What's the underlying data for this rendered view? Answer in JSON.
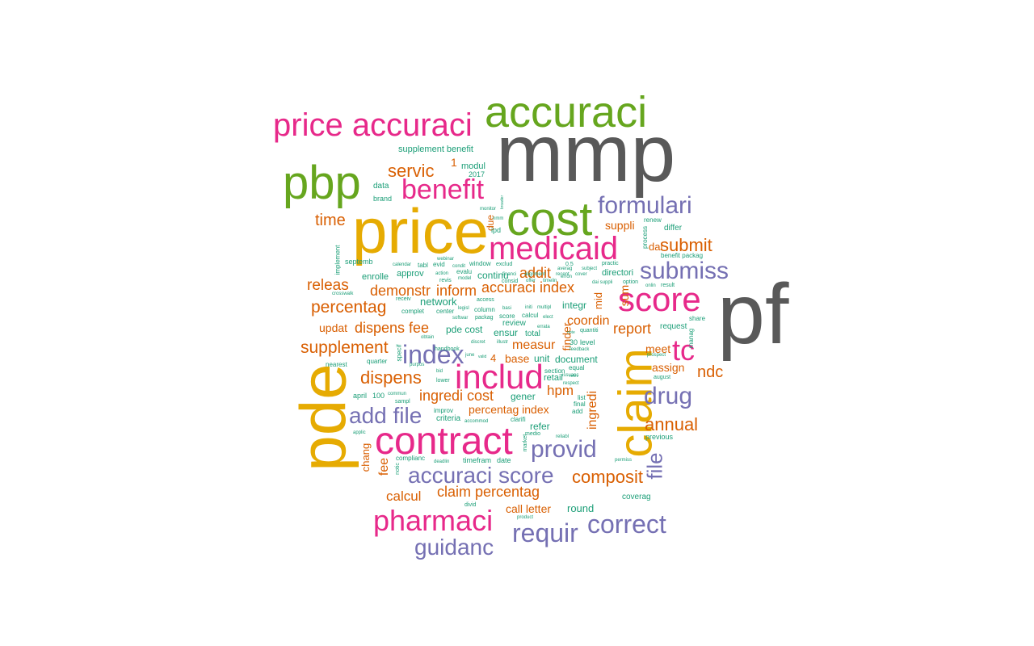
{
  "wordcloud": {
    "words": [
      {
        "text": "mmp",
        "color": "#595959"
      },
      {
        "text": "pf",
        "color": "#595959"
      },
      {
        "text": "price",
        "color": "#e6ab02"
      },
      {
        "text": "pde",
        "color": "#e6ab02"
      },
      {
        "text": "claim",
        "color": "#e6ab02"
      },
      {
        "text": "accuraci",
        "color": "#66a61e"
      },
      {
        "text": "cost",
        "color": "#66a61e"
      },
      {
        "text": "pbp",
        "color": "#66a61e"
      },
      {
        "text": "price accuraci",
        "color": "#e7298a"
      },
      {
        "text": "contract",
        "color": "#e7298a"
      },
      {
        "text": "medicaid",
        "color": "#e7298a"
      },
      {
        "text": "score",
        "color": "#e7298a"
      },
      {
        "text": "includ",
        "color": "#e7298a"
      },
      {
        "text": "pharmaci",
        "color": "#e7298a"
      },
      {
        "text": "benefit",
        "color": "#e7298a"
      },
      {
        "text": "tc",
        "color": "#e7298a"
      },
      {
        "text": "formulari",
        "color": "#7570b3"
      },
      {
        "text": "submiss",
        "color": "#7570b3"
      },
      {
        "text": "index",
        "color": "#7570b3"
      },
      {
        "text": "drug",
        "color": "#7570b3"
      },
      {
        "text": "add file",
        "color": "#7570b3"
      },
      {
        "text": "provid",
        "color": "#7570b3"
      },
      {
        "text": "accuraci score",
        "color": "#7570b3"
      },
      {
        "text": "requir",
        "color": "#7570b3"
      },
      {
        "text": "correct",
        "color": "#7570b3"
      },
      {
        "text": "guidanc",
        "color": "#7570b3"
      },
      {
        "text": "file",
        "color": "#7570b3"
      },
      {
        "text": "servic",
        "color": "#d95f02"
      },
      {
        "text": "time",
        "color": "#d95f02"
      },
      {
        "text": "submit",
        "color": "#d95f02"
      },
      {
        "text": "releas",
        "color": "#d95f02"
      },
      {
        "text": "percentag",
        "color": "#d95f02"
      },
      {
        "text": "demonstr",
        "color": "#d95f02"
      },
      {
        "text": "inform",
        "color": "#d95f02"
      },
      {
        "text": "accuraci index",
        "color": "#d95f02"
      },
      {
        "text": "addit",
        "color": "#d95f02"
      },
      {
        "text": "dispens fee",
        "color": "#d95f02"
      },
      {
        "text": "supplement",
        "color": "#d95f02"
      },
      {
        "text": "dispens",
        "color": "#d95f02"
      },
      {
        "text": "ingredi cost",
        "color": "#d95f02"
      },
      {
        "text": "report",
        "color": "#d95f02"
      },
      {
        "text": "coordin",
        "color": "#d95f02"
      },
      {
        "text": "measur",
        "color": "#d95f02"
      },
      {
        "text": "hpm",
        "color": "#d95f02"
      },
      {
        "text": "ndc",
        "color": "#d95f02"
      },
      {
        "text": "annual",
        "color": "#d95f02"
      },
      {
        "text": "composit",
        "color": "#d95f02"
      },
      {
        "text": "claim percentag",
        "color": "#d95f02"
      },
      {
        "text": "calcul",
        "color": "#d95f02"
      },
      {
        "text": "call letter",
        "color": "#d95f02"
      },
      {
        "text": "percentag index",
        "color": "#d95f02"
      },
      {
        "text": "assign",
        "color": "#d95f02"
      },
      {
        "text": "meet",
        "color": "#d95f02"
      },
      {
        "text": "base",
        "color": "#d95f02"
      },
      {
        "text": "suppli",
        "color": "#d95f02"
      },
      {
        "text": "dai",
        "color": "#d95f02"
      },
      {
        "text": "sum",
        "color": "#d95f02"
      },
      {
        "text": "mid",
        "color": "#d95f02"
      },
      {
        "text": "ingredi",
        "color": "#d95f02"
      },
      {
        "text": "fee",
        "color": "#d95f02"
      },
      {
        "text": "updat",
        "color": "#d95f02"
      },
      {
        "text": "1",
        "color": "#d95f02"
      },
      {
        "text": "4",
        "color": "#d95f02"
      },
      {
        "text": "chang",
        "color": "#d95f02"
      },
      {
        "text": "finder",
        "color": "#d95f02"
      },
      {
        "text": "due",
        "color": "#d95f02"
      },
      {
        "text": "supplement benefit",
        "color": "#1b9e77"
      },
      {
        "text": "modul",
        "color": "#1b9e77"
      },
      {
        "text": "2017",
        "color": "#1b9e77"
      },
      {
        "text": "data",
        "color": "#1b9e77"
      },
      {
        "text": "brand",
        "color": "#1b9e77"
      },
      {
        "text": "ipd",
        "color": "#1b9e77"
      },
      {
        "text": "septemb",
        "color": "#1b9e77"
      },
      {
        "text": "implement",
        "color": "#1b9e77"
      },
      {
        "text": "enrolle",
        "color": "#1b9e77"
      },
      {
        "text": "approv",
        "color": "#1b9e77"
      },
      {
        "text": "network",
        "color": "#1b9e77"
      },
      {
        "text": "continu",
        "color": "#1b9e77"
      },
      {
        "text": "integr",
        "color": "#1b9e77"
      },
      {
        "text": "directori",
        "color": "#1b9e77"
      },
      {
        "text": "pde cost",
        "color": "#1b9e77"
      },
      {
        "text": "ensur",
        "color": "#1b9e77"
      },
      {
        "text": "total",
        "color": "#1b9e77"
      },
      {
        "text": "review",
        "color": "#1b9e77"
      },
      {
        "text": "unit",
        "color": "#1b9e77"
      },
      {
        "text": "document",
        "color": "#1b9e77"
      },
      {
        "text": "retail",
        "color": "#1b9e77"
      },
      {
        "text": "gener",
        "color": "#1b9e77"
      },
      {
        "text": "refer",
        "color": "#1b9e77"
      },
      {
        "text": "criteria",
        "color": "#1b9e77"
      },
      {
        "text": "round",
        "color": "#1b9e77"
      },
      {
        "text": "coverag",
        "color": "#1b9e77"
      },
      {
        "text": "request",
        "color": "#1b9e77"
      },
      {
        "text": "differ",
        "color": "#1b9e77"
      },
      {
        "text": "renew",
        "color": "#1b9e77"
      },
      {
        "text": "benefit packag",
        "color": "#1b9e77"
      },
      {
        "text": "result",
        "color": "#1b9e77"
      },
      {
        "text": "share",
        "color": "#1b9e77"
      },
      {
        "text": "manag",
        "color": "#1b9e77"
      },
      {
        "text": "process",
        "color": "#1b9e77"
      },
      {
        "text": "april",
        "color": "#1b9e77"
      },
      {
        "text": "100",
        "color": "#1b9e77"
      },
      {
        "text": "nearest",
        "color": "#1b9e77"
      },
      {
        "text": "quarter",
        "color": "#1b9e77"
      },
      {
        "text": "specif",
        "color": "#1b9e77"
      },
      {
        "text": "complianc",
        "color": "#1b9e77"
      },
      {
        "text": "timefram",
        "color": "#1b9e77"
      },
      {
        "text": "date",
        "color": "#1b9e77"
      },
      {
        "text": "notic",
        "color": "#1b9e77"
      },
      {
        "text": "improv",
        "color": "#1b9e77"
      },
      {
        "text": "sampl",
        "color": "#1b9e77"
      },
      {
        "text": "previous",
        "color": "#1b9e77"
      },
      {
        "text": "level",
        "color": "#1b9e77"
      },
      {
        "text": "30",
        "color": "#1b9e77"
      },
      {
        "text": "list",
        "color": "#1b9e77"
      },
      {
        "text": "final",
        "color": "#1b9e77"
      },
      {
        "text": "add",
        "color": "#1b9e77"
      },
      {
        "text": "equal",
        "color": "#1b9e77"
      },
      {
        "text": "section",
        "color": "#1b9e77"
      },
      {
        "text": "market",
        "color": "#1b9e77"
      },
      {
        "text": "clarifi",
        "color": "#1b9e77"
      },
      {
        "text": "complet",
        "color": "#1b9e77"
      },
      {
        "text": "center",
        "color": "#1b9e77"
      },
      {
        "text": "column",
        "color": "#1b9e77"
      },
      {
        "text": "access",
        "color": "#1b9e77"
      },
      {
        "text": "window",
        "color": "#1b9e77"
      },
      {
        "text": "evid",
        "color": "#1b9e77"
      },
      {
        "text": "evalu",
        "color": "#1b9e77"
      },
      {
        "text": "tabl",
        "color": "#1b9e77"
      },
      {
        "text": "receiv",
        "color": "#1b9e77"
      },
      {
        "text": "handbook",
        "color": "#1b9e77"
      },
      {
        "text": "august",
        "color": "#1b9e77"
      },
      {
        "text": "prospect",
        "color": "#1b9e77"
      },
      {
        "text": "option",
        "color": "#1b9e77"
      },
      {
        "text": "practic",
        "color": "#1b9e77"
      },
      {
        "text": "quantiti",
        "color": "#1b9e77"
      },
      {
        "text": "onlin",
        "color": "#1b9e77"
      },
      {
        "text": "calendar",
        "color": "#1b9e77"
      },
      {
        "text": "webinar",
        "color": "#1b9e77"
      },
      {
        "text": "revis",
        "color": "#1b9e77"
      },
      {
        "text": "exclud",
        "color": "#1b9e77"
      },
      {
        "text": "consid",
        "color": "#1b9e77"
      },
      {
        "text": "monitor",
        "color": "#1b9e77"
      },
      {
        "text": "score",
        "color": "#1b9e77"
      },
      {
        "text": "calcul",
        "color": "#1b9e77"
      },
      {
        "text": "packag",
        "color": "#1b9e77"
      },
      {
        "text": "basi",
        "color": "#1b9e77"
      },
      {
        "text": "initi",
        "color": "#1b9e77"
      },
      {
        "text": "multipl",
        "color": "#1b9e77"
      },
      {
        "text": "crosswalk",
        "color": "#1b9e77"
      },
      {
        "text": "legisl",
        "color": "#1b9e77"
      },
      {
        "text": "softwar",
        "color": "#1b9e77"
      },
      {
        "text": "obtain",
        "color": "#1b9e77"
      },
      {
        "text": "lower",
        "color": "#1b9e77"
      },
      {
        "text": "purpos",
        "color": "#1b9e77"
      },
      {
        "text": "commun",
        "color": "#1b9e77"
      },
      {
        "text": "accommod",
        "color": "#1b9e77"
      },
      {
        "text": "applic",
        "color": "#1b9e77"
      },
      {
        "text": "deadlin",
        "color": "#1b9e77"
      },
      {
        "text": "medio",
        "color": "#1b9e77"
      },
      {
        "text": "reliabl",
        "color": "#1b9e77"
      },
      {
        "text": "product",
        "color": "#1b9e77"
      },
      {
        "text": "divid",
        "color": "#1b9e77"
      },
      {
        "text": "permiss",
        "color": "#1b9e77"
      },
      {
        "text": "subject",
        "color": "#1b9e77"
      },
      {
        "text": "averag",
        "color": "#1b9e77"
      },
      {
        "text": "0.5",
        "color": "#1b9e77"
      },
      {
        "text": "offer",
        "color": "#1b9e77"
      },
      {
        "text": "timelin",
        "color": "#1b9e77"
      },
      {
        "text": "issuanc",
        "color": "#1b9e77"
      },
      {
        "text": "relev",
        "color": "#1b9e77"
      },
      {
        "text": "respect",
        "color": "#1b9e77"
      },
      {
        "text": "feedback",
        "color": "#1b9e77"
      },
      {
        "text": "discret",
        "color": "#1b9e77"
      },
      {
        "text": "illustr",
        "color": "#1b9e77"
      },
      {
        "text": "june",
        "color": "#1b9e77"
      },
      {
        "text": "valid",
        "color": "#1b9e77"
      },
      {
        "text": "bid",
        "color": "#1b9e77"
      },
      {
        "text": "elect",
        "color": "#1b9e77"
      },
      {
        "text": "errata",
        "color": "#1b9e77"
      },
      {
        "text": "note",
        "color": "#1b9e77"
      },
      {
        "text": "financi",
        "color": "#1b9e77"
      },
      {
        "text": "alignment",
        "color": "#1b9e77"
      },
      {
        "text": "recent",
        "color": "#1b9e77"
      },
      {
        "text": "cover",
        "color": "#1b9e77"
      },
      {
        "text": "action",
        "color": "#1b9e77"
      },
      {
        "text": "model",
        "color": "#1b9e77"
      },
      {
        "text": "condit",
        "color": "#1b9e77"
      },
      {
        "text": "nmm",
        "color": "#1b9e77"
      },
      {
        "text": "erron",
        "color": "#1b9e77"
      },
      {
        "text": "dai suppli",
        "color": "#1b9e77"
      },
      {
        "text": "broader",
        "color": "#1b9e77"
      }
    ]
  }
}
